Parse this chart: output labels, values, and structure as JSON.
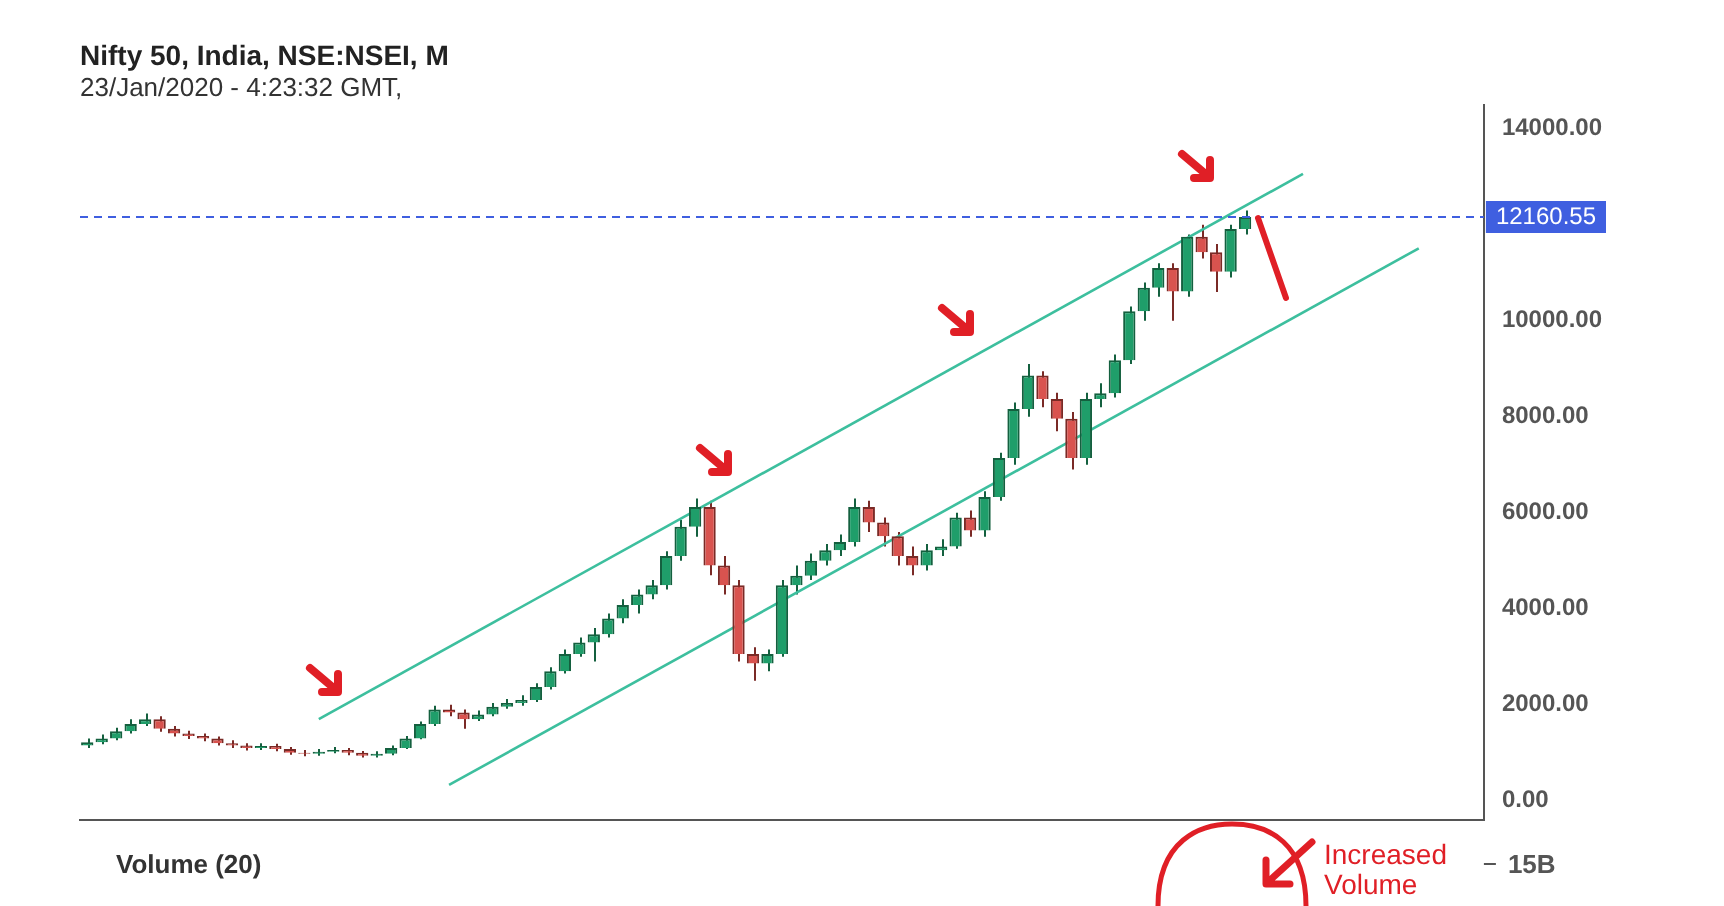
{
  "chart_data": {
    "type": "candlestick",
    "title": "Nifty 50, India, NSE:NSEI, M",
    "subtitle": "23/Jan/2020 - 4:23:32 GMT,",
    "categories": [
      null,
      null,
      null,
      null,
      null,
      null,
      null,
      null,
      null,
      null,
      null,
      null,
      null,
      null,
      null,
      null,
      null,
      null,
      null,
      null,
      null,
      null,
      null,
      null,
      null,
      null,
      null,
      null,
      null,
      null,
      null,
      null,
      null,
      null,
      null,
      null,
      null,
      null,
      null,
      null,
      null,
      null,
      null,
      null,
      null,
      null,
      null,
      null,
      null,
      null,
      null,
      null,
      null,
      null,
      null,
      null,
      null,
      null,
      null,
      null,
      null,
      null,
      null,
      null,
      null,
      null,
      null,
      null,
      null,
      null,
      null,
      null,
      null,
      null,
      null,
      null,
      null,
      null,
      null,
      null,
      null,
      null,
      null,
      null,
      null,
      null,
      null,
      null,
      null,
      null,
      null,
      null,
      null,
      null,
      null,
      null,
      null
    ],
    "ohlc": [
      [
        1150,
        1300,
        1100,
        1220
      ],
      [
        1220,
        1380,
        1180,
        1300
      ],
      [
        1300,
        1520,
        1260,
        1450
      ],
      [
        1450,
        1700,
        1400,
        1600
      ],
      [
        1600,
        1820,
        1560,
        1700
      ],
      [
        1700,
        1760,
        1440,
        1500
      ],
      [
        1500,
        1560,
        1340,
        1400
      ],
      [
        1400,
        1460,
        1290,
        1350
      ],
      [
        1350,
        1400,
        1240,
        1300
      ],
      [
        1300,
        1340,
        1150,
        1200
      ],
      [
        1200,
        1260,
        1100,
        1150
      ],
      [
        1150,
        1200,
        1050,
        1100
      ],
      [
        1100,
        1200,
        1060,
        1140
      ],
      [
        1140,
        1190,
        1030,
        1080
      ],
      [
        1080,
        1120,
        960,
        1000
      ],
      [
        1000,
        1060,
        930,
        980
      ],
      [
        980,
        1080,
        940,
        1020
      ],
      [
        1020,
        1120,
        990,
        1060
      ],
      [
        1060,
        1100,
        950,
        1000
      ],
      [
        1000,
        1040,
        900,
        940
      ],
      [
        940,
        1030,
        900,
        980
      ],
      [
        980,
        1150,
        950,
        1100
      ],
      [
        1100,
        1350,
        1080,
        1300
      ],
      [
        1300,
        1650,
        1280,
        1600
      ],
      [
        1600,
        1980,
        1560,
        1900
      ],
      [
        1900,
        2000,
        1760,
        1840
      ],
      [
        1840,
        1900,
        1500,
        1700
      ],
      [
        1700,
        1880,
        1660,
        1800
      ],
      [
        1800,
        2040,
        1760,
        1960
      ],
      [
        1960,
        2120,
        1920,
        2040
      ],
      [
        2040,
        2200,
        1980,
        2100
      ],
      [
        2100,
        2450,
        2060,
        2370
      ],
      [
        2370,
        2780,
        2320,
        2700
      ],
      [
        2700,
        3150,
        2650,
        3060
      ],
      [
        3060,
        3400,
        3000,
        3300
      ],
      [
        3300,
        3600,
        2900,
        3470
      ],
      [
        3470,
        3900,
        3400,
        3800
      ],
      [
        3800,
        4200,
        3700,
        4080
      ],
      [
        4080,
        4400,
        3900,
        4300
      ],
      [
        4300,
        4600,
        4200,
        4490
      ],
      [
        4490,
        5200,
        4400,
        5100
      ],
      [
        5100,
        5850,
        5000,
        5710
      ],
      [
        5710,
        6300,
        5500,
        6120
      ],
      [
        6120,
        6250,
        4700,
        4900
      ],
      [
        4900,
        5100,
        4300,
        4490
      ],
      [
        4490,
        4600,
        2900,
        3060
      ],
      [
        3060,
        3200,
        2500,
        2860
      ],
      [
        2860,
        3150,
        2700,
        3060
      ],
      [
        3060,
        4600,
        3000,
        4490
      ],
      [
        4490,
        4900,
        4300,
        4690
      ],
      [
        4690,
        5150,
        4600,
        5000
      ],
      [
        5000,
        5350,
        4900,
        5220
      ],
      [
        5220,
        5550,
        5100,
        5390
      ],
      [
        5390,
        6300,
        5300,
        6120
      ],
      [
        6120,
        6250,
        5600,
        5800
      ],
      [
        5800,
        5900,
        5300,
        5510
      ],
      [
        5510,
        5600,
        4900,
        5100
      ],
      [
        5100,
        5300,
        4700,
        4900
      ],
      [
        4900,
        5350,
        4800,
        5220
      ],
      [
        5220,
        5450,
        5100,
        5300
      ],
      [
        5300,
        6000,
        5250,
        5900
      ],
      [
        5900,
        6050,
        5500,
        5630
      ],
      [
        5630,
        6450,
        5500,
        6330
      ],
      [
        6330,
        7250,
        6250,
        7140
      ],
      [
        7140,
        8300,
        7000,
        8160
      ],
      [
        8160,
        9100,
        8000,
        8860
      ],
      [
        8860,
        8950,
        8200,
        8370
      ],
      [
        8370,
        8500,
        7700,
        7960
      ],
      [
        7960,
        8100,
        6900,
        7140
      ],
      [
        7140,
        8500,
        7000,
        8370
      ],
      [
        8370,
        8700,
        8200,
        8490
      ],
      [
        8490,
        9300,
        8400,
        9180
      ],
      [
        9180,
        10300,
        9100,
        10200
      ],
      [
        10200,
        10800,
        10000,
        10690
      ],
      [
        10690,
        11200,
        10500,
        11100
      ],
      [
        11100,
        11200,
        10000,
        10610
      ],
      [
        10610,
        11800,
        10500,
        11750
      ],
      [
        11750,
        12000,
        11300,
        11430
      ],
      [
        11430,
        11600,
        10600,
        11020
      ],
      [
        11020,
        12000,
        10900,
        11910
      ],
      [
        11910,
        12300,
        11800,
        12160.55
      ],
      null,
      null,
      null,
      null,
      null,
      null,
      null,
      null,
      null,
      null,
      null,
      null,
      null,
      null,
      null,
      null
    ],
    "series": [
      {
        "type": "line",
        "color": "#3dbf9e",
        "values": [
          null,
          null,
          null,
          null,
          null,
          null,
          null,
          null,
          null,
          null,
          null,
          null,
          null,
          null,
          null,
          null,
          1700,
          null,
          null,
          null,
          null,
          null,
          null,
          null,
          null,
          null,
          null,
          null,
          null,
          null,
          null,
          null,
          null,
          null,
          null,
          null,
          null,
          null,
          null,
          null,
          null,
          null,
          null,
          null,
          null,
          null,
          null,
          null,
          null,
          null,
          null,
          null,
          null,
          null,
          null,
          null,
          null,
          null,
          null,
          null,
          null,
          null,
          null,
          null,
          null,
          null,
          null,
          null,
          null,
          null,
          null,
          null,
          null,
          null,
          null,
          null,
          null,
          null,
          null,
          null,
          null,
          null,
          null,
          null,
          13060,
          null,
          null,
          null,
          null,
          null,
          null,
          null,
          null,
          null,
          null,
          null,
          null
        ]
      },
      {
        "type": "line",
        "color": "#3dbf9e",
        "values": [
          null,
          null,
          null,
          null,
          null,
          null,
          null,
          null,
          null,
          null,
          null,
          null,
          null,
          null,
          null,
          null,
          null,
          null,
          null,
          null,
          null,
          null,
          null,
          null,
          null,
          330,
          null,
          null,
          null,
          null,
          null,
          null,
          null,
          null,
          null,
          null,
          null,
          null,
          null,
          null,
          null,
          null,
          null,
          null,
          null,
          null,
          null,
          null,
          null,
          null,
          null,
          null,
          null,
          null,
          null,
          null,
          null,
          null,
          null,
          null,
          null,
          null,
          null,
          null,
          null,
          null,
          null,
          null,
          null,
          null,
          null,
          null,
          null,
          null,
          null,
          null,
          null,
          null,
          null,
          null,
          null,
          null,
          null,
          null,
          null,
          null,
          null,
          null,
          null,
          null,
          null,
          null,
          11510,
          null,
          null,
          null,
          null
        ]
      }
    ],
    "ylim": [
      -400,
      14500
    ],
    "yticks": [
      {
        "value": 0,
        "label": "0.00"
      },
      {
        "value": 2000,
        "label": "2000.00"
      },
      {
        "value": 4000,
        "label": "4000.00"
      },
      {
        "value": 6000,
        "label": "6000.00"
      },
      {
        "value": 8000,
        "label": "8000.00"
      },
      {
        "value": 10000,
        "label": "10000.00"
      },
      {
        "value": 14000,
        "label": "14000.00"
      }
    ],
    "tick_labels": "y",
    "ref_lines": [
      {
        "axis": "y",
        "value": 12160.55,
        "label": "12160.55",
        "color": "#3f5fe0",
        "line_style": "dashed"
      }
    ],
    "annotations": [
      "Volume (20)",
      "15B",
      "Increased Volume"
    ]
  }
}
